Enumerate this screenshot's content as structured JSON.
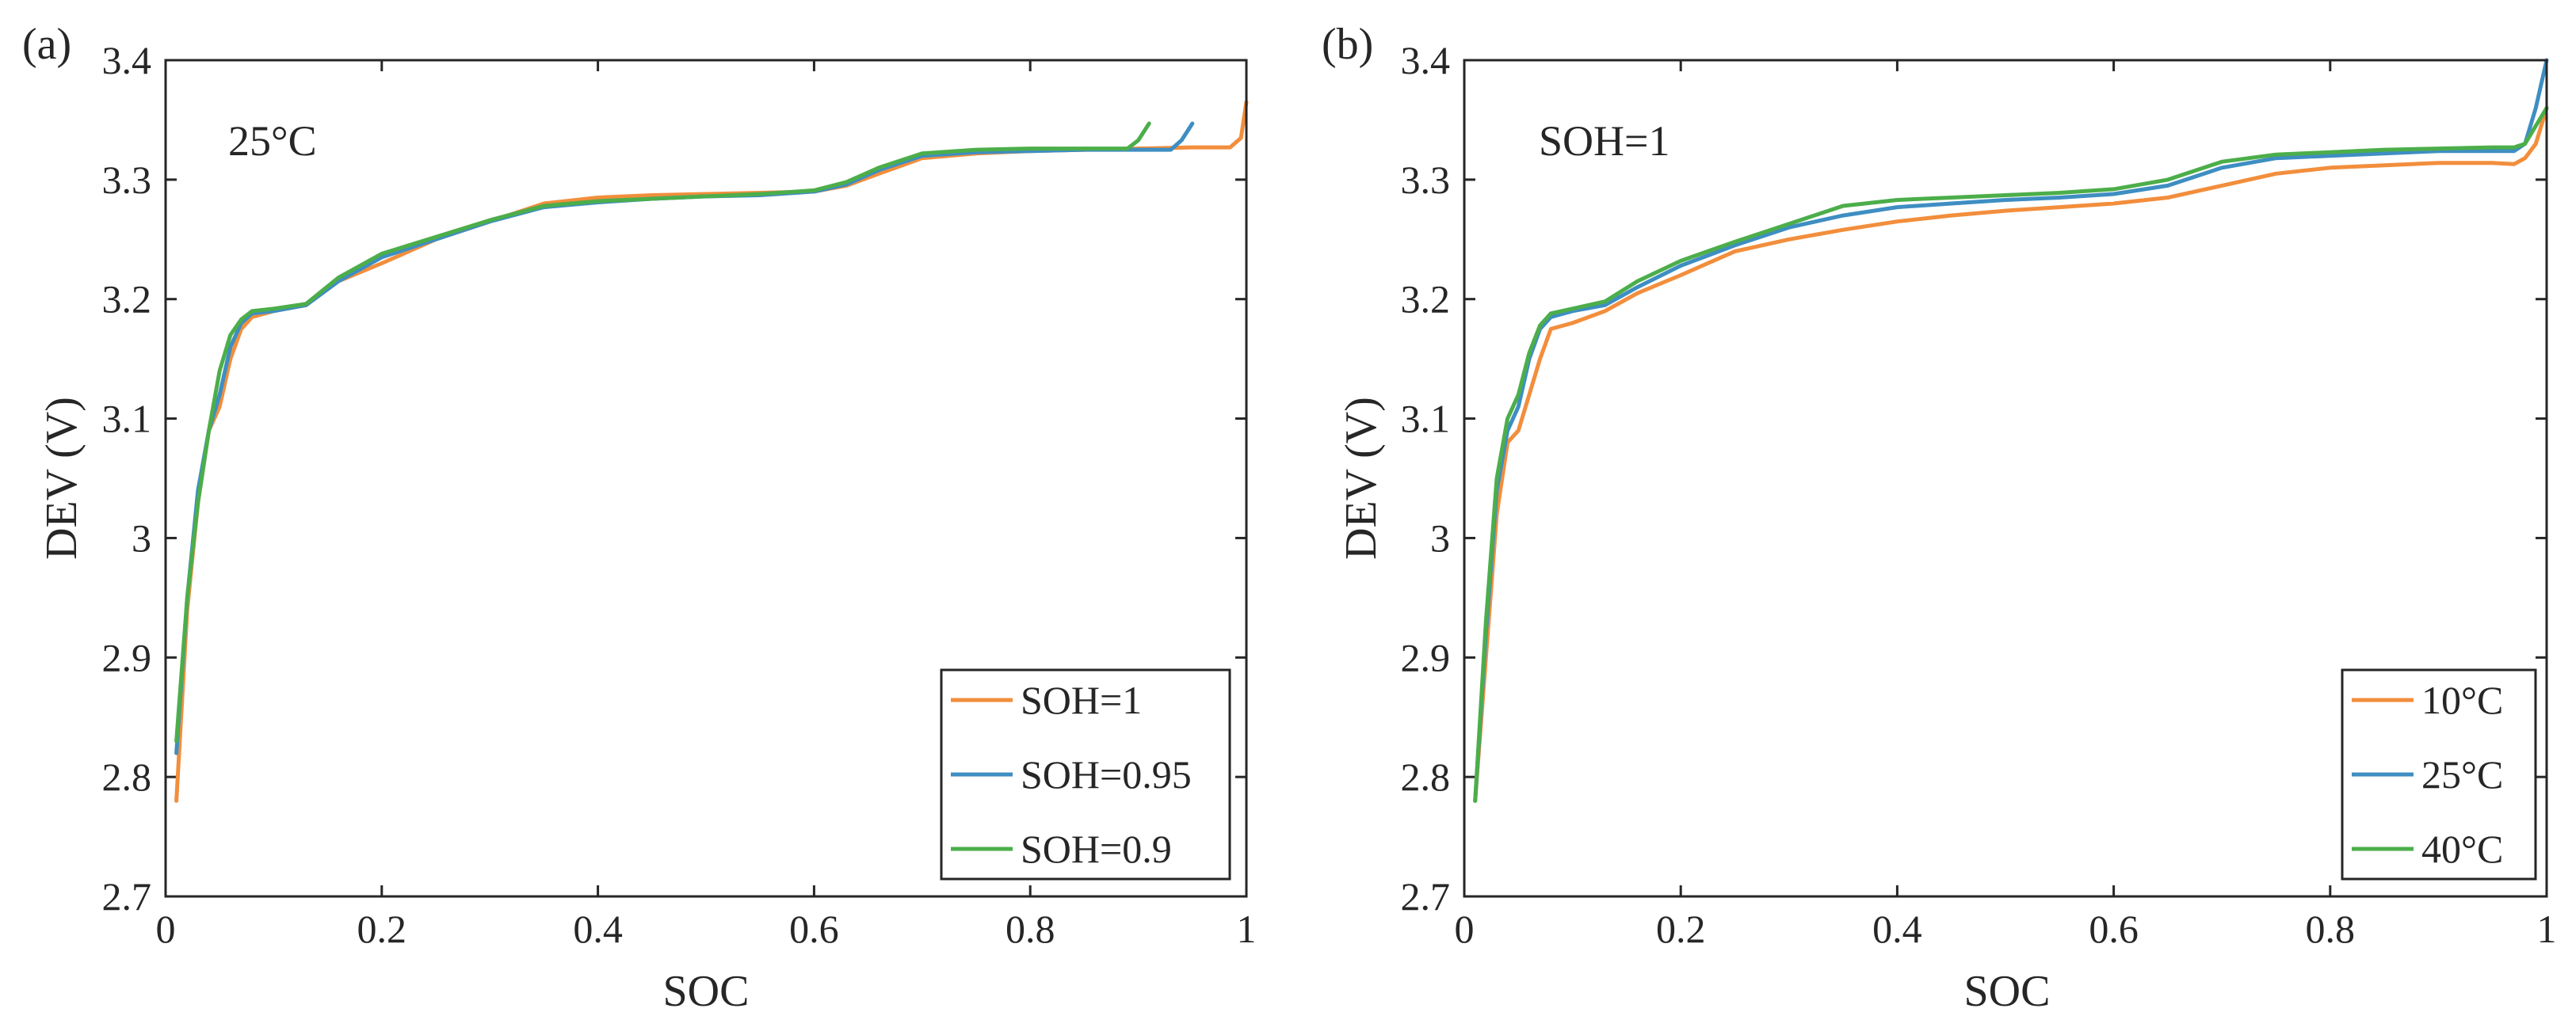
{
  "chart_data": [
    {
      "type": "line",
      "panel_tag": "(a)",
      "annotation": "25°C",
      "xlabel": "SOC",
      "ylabel": "DEV (V)",
      "xlim": [
        0,
        1
      ],
      "ylim": [
        2.7,
        3.4
      ],
      "xticks": [
        0,
        0.2,
        0.4,
        0.6,
        0.8,
        1
      ],
      "xtick_labels": [
        "0",
        "0.2",
        "0.4",
        "0.6",
        "0.8",
        "1"
      ],
      "yticks": [
        2.7,
        2.8,
        2.9,
        3.0,
        3.1,
        3.2,
        3.3,
        3.4
      ],
      "ytick_labels": [
        "2.7",
        "2.8",
        "2.9",
        "3",
        "3.1",
        "3.2",
        "3.3",
        "3.4"
      ],
      "grid": false,
      "legend_position": "bottom-right",
      "series": [
        {
          "name": "SOH=1",
          "color": "#F28E3C",
          "x": [
            0.01,
            0.02,
            0.03,
            0.04,
            0.05,
            0.06,
            0.07,
            0.08,
            0.1,
            0.13,
            0.16,
            0.2,
            0.25,
            0.3,
            0.35,
            0.4,
            0.45,
            0.5,
            0.55,
            0.6,
            0.63,
            0.66,
            0.7,
            0.75,
            0.8,
            0.85,
            0.9,
            0.95,
            0.985,
            0.995,
            1.0
          ],
          "values": [
            2.78,
            2.94,
            3.03,
            3.09,
            3.11,
            3.15,
            3.175,
            3.185,
            3.19,
            3.195,
            3.215,
            3.23,
            3.25,
            3.265,
            3.28,
            3.285,
            3.287,
            3.288,
            3.289,
            3.29,
            3.295,
            3.305,
            3.318,
            3.322,
            3.324,
            3.325,
            3.326,
            3.327,
            3.327,
            3.335,
            3.365
          ]
        },
        {
          "name": "SOH=0.95",
          "color": "#3E8EC2",
          "x": [
            0.01,
            0.02,
            0.03,
            0.04,
            0.05,
            0.06,
            0.07,
            0.08,
            0.1,
            0.13,
            0.16,
            0.2,
            0.25,
            0.3,
            0.35,
            0.4,
            0.45,
            0.5,
            0.55,
            0.6,
            0.63,
            0.66,
            0.7,
            0.75,
            0.8,
            0.85,
            0.9,
            0.93,
            0.94,
            0.95
          ],
          "values": [
            2.82,
            2.95,
            3.04,
            3.09,
            3.12,
            3.16,
            3.18,
            3.188,
            3.19,
            3.195,
            3.215,
            3.235,
            3.25,
            3.265,
            3.277,
            3.281,
            3.284,
            3.286,
            3.287,
            3.29,
            3.296,
            3.308,
            3.32,
            3.323,
            3.324,
            3.325,
            3.325,
            3.325,
            3.333,
            3.347
          ]
        },
        {
          "name": "SOH=0.9",
          "color": "#4CAE4A",
          "x": [
            0.01,
            0.02,
            0.03,
            0.04,
            0.05,
            0.06,
            0.07,
            0.08,
            0.1,
            0.13,
            0.16,
            0.2,
            0.25,
            0.3,
            0.35,
            0.4,
            0.45,
            0.5,
            0.55,
            0.6,
            0.63,
            0.66,
            0.7,
            0.75,
            0.8,
            0.85,
            0.89,
            0.9,
            0.91
          ],
          "values": [
            2.83,
            2.95,
            3.03,
            3.09,
            3.14,
            3.17,
            3.183,
            3.19,
            3.192,
            3.196,
            3.218,
            3.238,
            3.252,
            3.266,
            3.278,
            3.282,
            3.284,
            3.286,
            3.288,
            3.291,
            3.298,
            3.31,
            3.322,
            3.325,
            3.326,
            3.326,
            3.326,
            3.333,
            3.347
          ]
        }
      ]
    },
    {
      "type": "line",
      "panel_tag": "(b)",
      "annotation": "SOH=1",
      "xlabel": "SOC",
      "ylabel": "DEV (V)",
      "xlim": [
        0,
        1
      ],
      "ylim": [
        2.7,
        3.4
      ],
      "xticks": [
        0,
        0.2,
        0.4,
        0.6,
        0.8,
        1
      ],
      "xtick_labels": [
        "0",
        "0.2",
        "0.4",
        "0.6",
        "0.8",
        "1"
      ],
      "yticks": [
        2.7,
        2.8,
        2.9,
        3.0,
        3.1,
        3.2,
        3.3,
        3.4
      ],
      "ytick_labels": [
        "2.7",
        "2.8",
        "2.9",
        "3",
        "3.1",
        "3.2",
        "3.3",
        "3.4"
      ],
      "grid": false,
      "legend_position": "bottom-right",
      "series": [
        {
          "name": "10°C",
          "color": "#F28E3C",
          "x": [
            0.01,
            0.02,
            0.03,
            0.04,
            0.05,
            0.06,
            0.07,
            0.08,
            0.1,
            0.13,
            0.16,
            0.2,
            0.25,
            0.3,
            0.35,
            0.4,
            0.45,
            0.5,
            0.55,
            0.6,
            0.65,
            0.7,
            0.75,
            0.8,
            0.85,
            0.9,
            0.95,
            0.97,
            0.98,
            0.99,
            1.0
          ],
          "values": [
            2.78,
            2.9,
            3.02,
            3.08,
            3.09,
            3.12,
            3.15,
            3.175,
            3.18,
            3.19,
            3.205,
            3.22,
            3.24,
            3.25,
            3.258,
            3.265,
            3.27,
            3.274,
            3.277,
            3.28,
            3.285,
            3.295,
            3.305,
            3.31,
            3.312,
            3.314,
            3.314,
            3.313,
            3.318,
            3.33,
            3.36
          ]
        },
        {
          "name": "25°C",
          "color": "#3E8EC2",
          "x": [
            0.01,
            0.02,
            0.03,
            0.04,
            0.05,
            0.06,
            0.07,
            0.08,
            0.1,
            0.13,
            0.16,
            0.2,
            0.25,
            0.3,
            0.35,
            0.4,
            0.45,
            0.5,
            0.55,
            0.6,
            0.65,
            0.7,
            0.75,
            0.8,
            0.85,
            0.9,
            0.95,
            0.97,
            0.98,
            0.99,
            1.0
          ],
          "values": [
            2.78,
            2.92,
            3.04,
            3.09,
            3.11,
            3.15,
            3.175,
            3.185,
            3.19,
            3.195,
            3.21,
            3.228,
            3.245,
            3.26,
            3.27,
            3.277,
            3.28,
            3.283,
            3.285,
            3.288,
            3.295,
            3.31,
            3.318,
            3.32,
            3.322,
            3.324,
            3.324,
            3.324,
            3.33,
            3.36,
            3.4
          ]
        },
        {
          "name": "40°C",
          "color": "#4CAE4A",
          "x": [
            0.01,
            0.02,
            0.03,
            0.04,
            0.05,
            0.06,
            0.07,
            0.08,
            0.1,
            0.13,
            0.16,
            0.2,
            0.25,
            0.3,
            0.35,
            0.4,
            0.45,
            0.5,
            0.55,
            0.6,
            0.65,
            0.7,
            0.75,
            0.8,
            0.85,
            0.9,
            0.95,
            0.97,
            0.98,
            0.99,
            1.0
          ],
          "values": [
            2.78,
            2.93,
            3.05,
            3.1,
            3.12,
            3.155,
            3.178,
            3.188,
            3.192,
            3.198,
            3.215,
            3.232,
            3.248,
            3.263,
            3.278,
            3.283,
            3.285,
            3.287,
            3.289,
            3.292,
            3.3,
            3.315,
            3.321,
            3.323,
            3.325,
            3.326,
            3.327,
            3.327,
            3.33,
            3.345,
            3.36
          ]
        }
      ]
    }
  ]
}
